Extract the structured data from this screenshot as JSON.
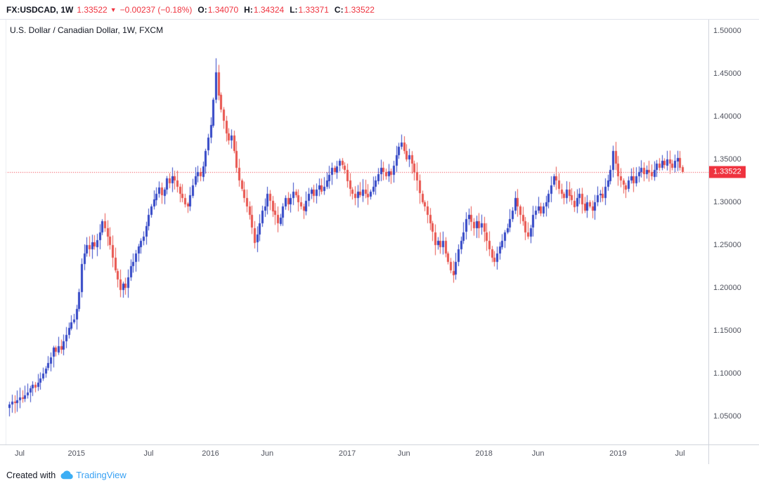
{
  "header": {
    "symbol": "FX:USDCAD, 1W",
    "last": "1.33522",
    "direction": "▼",
    "change": "−0.00237 (−0.18%)",
    "o_label": "O:",
    "o_value": "1.34070",
    "h_label": "H:",
    "h_value": "1.34324",
    "l_label": "L:",
    "l_value": "1.33371",
    "c_label": "C:",
    "c_value": "1.33522"
  },
  "legend": "U.S. Dollar / Canadian Dollar, 1W, FXCM",
  "price_tag": "1.33522",
  "footer": {
    "created_with": "Created with",
    "brand": "TradingView"
  },
  "colors": {
    "up": "#3347c6",
    "down": "#e8544e",
    "red": "#ef333f",
    "axis_text": "#50535e",
    "dark": "#131722",
    "blue": "#38a1f3"
  },
  "chart_data": {
    "type": "candlestick",
    "title": "U.S. Dollar / Canadian Dollar, 1W, FXCM",
    "symbol": "FX:USDCAD",
    "interval": "1W",
    "exchange": "FXCM",
    "last_price": 1.33522,
    "last_bar": {
      "open": 1.3407,
      "high": 1.34324,
      "low": 1.33371,
      "close": 1.33522
    },
    "y_axis": {
      "tick_labels": [
        "1.50000",
        "1.45000",
        "1.40000",
        "1.35000",
        "1.30000",
        "1.25000",
        "1.20000",
        "1.15000",
        "1.10000",
        "1.05000"
      ],
      "top_price": 1.5131,
      "bottom_price": 1.0172
    },
    "x_axis": {
      "labels": [
        {
          "text": "Jul",
          "week": 4
        },
        {
          "text": "2015",
          "week": 26
        },
        {
          "text": "Jul",
          "week": 54
        },
        {
          "text": "2016",
          "week": 78
        },
        {
          "text": "Jun",
          "week": 100
        },
        {
          "text": "2017",
          "week": 131
        },
        {
          "text": "Jun",
          "week": 153
        },
        {
          "text": "2018",
          "week": 184
        },
        {
          "text": "Jun",
          "week": 205
        },
        {
          "text": "2019",
          "week": 236
        },
        {
          "text": "Jul",
          "week": 260
        }
      ]
    },
    "weekly_closes": [
      1.064,
      1.067,
      1.0655,
      1.069,
      1.072,
      1.07,
      1.0745,
      1.078,
      1.083,
      1.087,
      1.084,
      1.089,
      1.094,
      1.1,
      1.106,
      1.112,
      1.119,
      1.13,
      1.125,
      1.132,
      1.128,
      1.138,
      1.145,
      1.153,
      1.16,
      1.163,
      1.175,
      1.195,
      1.228,
      1.24,
      1.25,
      1.245,
      1.253,
      1.248,
      1.256,
      1.265,
      1.278,
      1.27,
      1.26,
      1.25,
      1.235,
      1.22,
      1.21,
      1.198,
      1.205,
      1.2,
      1.212,
      1.225,
      1.23,
      1.24,
      1.248,
      1.255,
      1.26,
      1.272,
      1.285,
      1.295,
      1.303,
      1.31,
      1.317,
      1.308,
      1.315,
      1.328,
      1.322,
      1.33,
      1.325,
      1.318,
      1.31,
      1.305,
      1.298,
      1.295,
      1.308,
      1.32,
      1.33,
      1.335,
      1.33,
      1.342,
      1.36,
      1.375,
      1.39,
      1.42,
      1.452,
      1.425,
      1.408,
      1.395,
      1.38,
      1.372,
      1.378,
      1.36,
      1.34,
      1.325,
      1.315,
      1.305,
      1.295,
      1.285,
      1.27,
      1.253,
      1.262,
      1.275,
      1.29,
      1.295,
      1.31,
      1.302,
      1.29,
      1.285,
      1.275,
      1.282,
      1.295,
      1.305,
      1.298,
      1.305,
      1.312,
      1.308,
      1.3,
      1.295,
      1.29,
      1.302,
      1.31,
      1.315,
      1.308,
      1.315,
      1.32,
      1.313,
      1.318,
      1.325,
      1.332,
      1.34,
      1.335,
      1.342,
      1.348,
      1.343,
      1.338,
      1.325,
      1.315,
      1.31,
      1.305,
      1.312,
      1.308,
      1.315,
      1.31,
      1.306,
      1.312,
      1.318,
      1.325,
      1.333,
      1.34,
      1.335,
      1.33,
      1.336,
      1.332,
      1.343,
      1.355,
      1.365,
      1.37,
      1.36,
      1.35,
      1.355,
      1.345,
      1.335,
      1.325,
      1.31,
      1.3,
      1.295,
      1.285,
      1.275,
      1.265,
      1.25,
      1.255,
      1.248,
      1.255,
      1.24,
      1.23,
      1.22,
      1.215,
      1.23,
      1.245,
      1.255,
      1.265,
      1.28,
      1.285,
      1.277,
      1.27,
      1.278,
      1.27,
      1.275,
      1.265,
      1.255,
      1.245,
      1.235,
      1.23,
      1.24,
      1.248,
      1.255,
      1.265,
      1.27,
      1.28,
      1.29,
      1.305,
      1.295,
      1.285,
      1.278,
      1.265,
      1.26,
      1.27,
      1.285,
      1.29,
      1.295,
      1.287,
      1.295,
      1.3,
      1.31,
      1.32,
      1.33,
      1.325,
      1.315,
      1.31,
      1.305,
      1.315,
      1.308,
      1.302,
      1.295,
      1.305,
      1.31,
      1.298,
      1.29,
      1.3,
      1.295,
      1.29,
      1.3,
      1.308,
      1.31,
      1.305,
      1.318,
      1.325,
      1.338,
      1.36,
      1.345,
      1.33,
      1.325,
      1.32,
      1.315,
      1.325,
      1.33,
      1.322,
      1.33,
      1.335,
      1.34,
      1.333,
      1.338,
      1.335,
      1.33,
      1.338,
      1.345,
      1.34,
      1.348,
      1.343,
      1.35,
      1.345,
      1.34,
      1.348,
      1.352,
      1.3407,
      1.33522
    ],
    "wick_overrides": {
      "45": {
        "low": 1.192
      },
      "80": {
        "high": 1.468
      },
      "95": {
        "low": 1.246
      },
      "152": {
        "high": 1.379
      },
      "172": {
        "low": 1.206
      },
      "188": {
        "low": 1.225
      },
      "234": {
        "high": 1.366
      },
      "261": {
        "high": 1.34324,
        "low": 1.33371
      }
    }
  }
}
